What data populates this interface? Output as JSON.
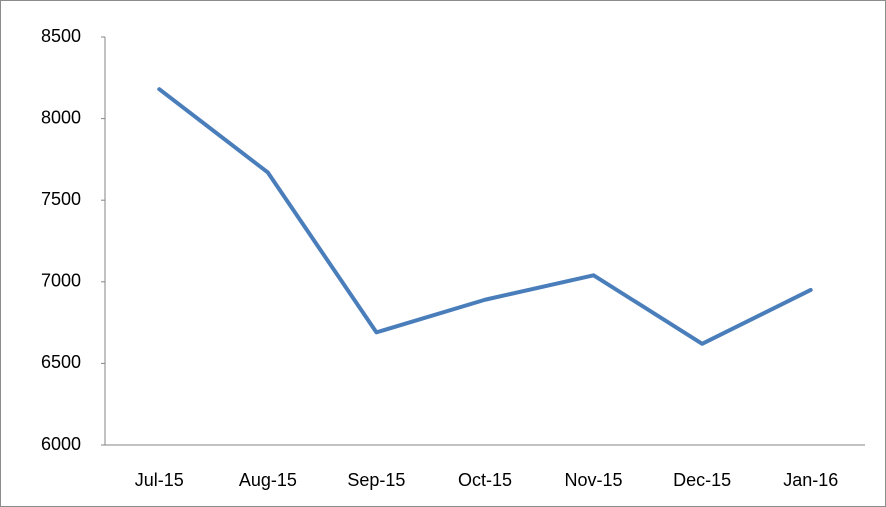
{
  "chart_data": {
    "type": "line",
    "categories": [
      "Jul-15",
      "Aug-15",
      "Sep-15",
      "Oct-15",
      "Nov-15",
      "Dec-15",
      "Jan-16"
    ],
    "values": [
      8180,
      7670,
      6690,
      6890,
      7040,
      6620,
      6950
    ],
    "color": "#4a7ebb",
    "ylim": [
      6000,
      8500
    ],
    "yticks": [
      6000,
      6500,
      7000,
      7500,
      8000,
      8500
    ],
    "grid": false
  }
}
